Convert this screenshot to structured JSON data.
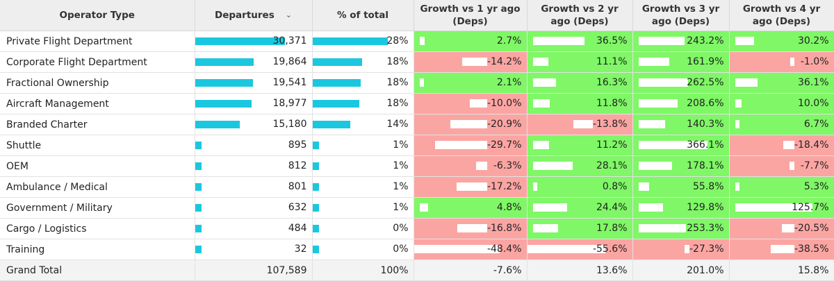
{
  "colors": {
    "bar": "#1bc7df",
    "positive": "#7ff766",
    "negative": "#fba5a3",
    "header_bg": "#eeeeee"
  },
  "headers": {
    "operator_type": "Operator Type",
    "departures": "Departures",
    "departures_sort_icon": "chevron-down-icon",
    "pct_total": "% of total",
    "g1": "Growth vs 1 yr ago (Deps)",
    "g2": "Growth vs 2 yr ago (Deps)",
    "g3": "Growth vs 3 yr ago (Deps)",
    "g4": "Growth vs 4 yr ago (Deps)"
  },
  "rows": [
    {
      "name": "Private Flight Department",
      "departures": 30371,
      "departures_text": "30,371",
      "pct": 28,
      "pct_text": "28%",
      "g1": 2.7,
      "g1_text": "2.7%",
      "g2": 36.5,
      "g2_text": "36.5%",
      "g3": 243.2,
      "g3_text": "243.2%",
      "g4": 30.2,
      "g4_text": "30.2%"
    },
    {
      "name": "Corporate Flight Department",
      "departures": 19864,
      "departures_text": "19,864",
      "pct": 18,
      "pct_text": "18%",
      "g1": -14.2,
      "g1_text": "-14.2%",
      "g2": 11.1,
      "g2_text": "11.1%",
      "g3": 161.9,
      "g3_text": "161.9%",
      "g4": -1.0,
      "g4_text": "-1.0%"
    },
    {
      "name": "Fractional Ownership",
      "departures": 19541,
      "departures_text": "19,541",
      "pct": 18,
      "pct_text": "18%",
      "g1": 2.1,
      "g1_text": "2.1%",
      "g2": 16.3,
      "g2_text": "16.3%",
      "g3": 262.5,
      "g3_text": "262.5%",
      "g4": 36.1,
      "g4_text": "36.1%"
    },
    {
      "name": "Aircraft Management",
      "departures": 18977,
      "departures_text": "18,977",
      "pct": 18,
      "pct_text": "18%",
      "g1": -10.0,
      "g1_text": "-10.0%",
      "g2": 11.8,
      "g2_text": "11.8%",
      "g3": 208.6,
      "g3_text": "208.6%",
      "g4": 10.0,
      "g4_text": "10.0%"
    },
    {
      "name": "Branded Charter",
      "departures": 15180,
      "departures_text": "15,180",
      "pct": 14,
      "pct_text": "14%",
      "g1": -20.9,
      "g1_text": "-20.9%",
      "g2": -13.8,
      "g2_text": "-13.8%",
      "g3": 140.3,
      "g3_text": "140.3%",
      "g4": 6.7,
      "g4_text": "6.7%"
    },
    {
      "name": "Shuttle",
      "departures": 895,
      "departures_text": "895",
      "pct": 1,
      "pct_text": "1%",
      "g1": -29.7,
      "g1_text": "-29.7%",
      "g2": 11.2,
      "g2_text": "11.2%",
      "g3": 366.1,
      "g3_text": "366.1%",
      "g4": -18.4,
      "g4_text": "-18.4%"
    },
    {
      "name": "OEM",
      "departures": 812,
      "departures_text": "812",
      "pct": 1,
      "pct_text": "1%",
      "g1": -6.3,
      "g1_text": "-6.3%",
      "g2": 28.1,
      "g2_text": "28.1%",
      "g3": 178.1,
      "g3_text": "178.1%",
      "g4": -7.7,
      "g4_text": "-7.7%"
    },
    {
      "name": "Ambulance / Medical",
      "departures": 801,
      "departures_text": "801",
      "pct": 1,
      "pct_text": "1%",
      "g1": -17.2,
      "g1_text": "-17.2%",
      "g2": 0.8,
      "g2_text": "0.8%",
      "g3": 55.8,
      "g3_text": "55.8%",
      "g4": 5.3,
      "g4_text": "5.3%"
    },
    {
      "name": "Government / Military",
      "departures": 632,
      "departures_text": "632",
      "pct": 1,
      "pct_text": "1%",
      "g1": 4.8,
      "g1_text": "4.8%",
      "g2": 24.4,
      "g2_text": "24.4%",
      "g3": 129.8,
      "g3_text": "129.8%",
      "g4": 125.7,
      "g4_text": "125.7%"
    },
    {
      "name": "Cargo / Logistics",
      "departures": 484,
      "departures_text": "484",
      "pct": 0,
      "pct_text": "0%",
      "g1": -16.8,
      "g1_text": "-16.8%",
      "g2": 17.8,
      "g2_text": "17.8%",
      "g3": 253.3,
      "g3_text": "253.3%",
      "g4": -20.5,
      "g4_text": "-20.5%"
    },
    {
      "name": "Training",
      "departures": 32,
      "departures_text": "32",
      "pct": 0,
      "pct_text": "0%",
      "g1": -48.4,
      "g1_text": "-48.4%",
      "g2": -55.6,
      "g2_text": "-55.6%",
      "g3": -27.3,
      "g3_text": "-27.3%",
      "g4": -38.5,
      "g4_text": "-38.5%"
    }
  ],
  "total": {
    "name": "Grand Total",
    "departures_text": "107,589",
    "pct_text": "100%",
    "g1_text": "-7.6%",
    "g2_text": "13.6%",
    "g3_text": "201.0%",
    "g4_text": "15.8%"
  }
}
